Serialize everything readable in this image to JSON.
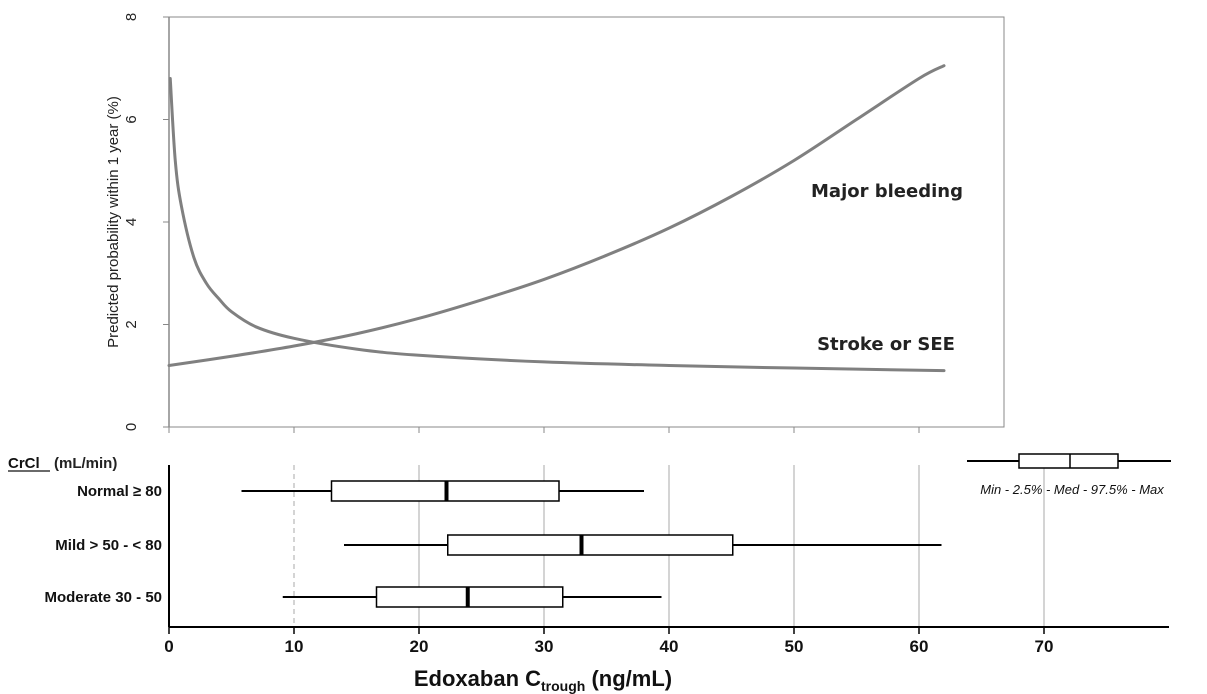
{
  "chart_data": [
    {
      "type": "line",
      "ylabel": "Predicted probability within 1 year (%)",
      "xlim": [
        0,
        62
      ],
      "ylim": [
        0,
        8
      ],
      "yticks": [
        "0",
        "2",
        "4",
        "6",
        "8"
      ],
      "grid": false,
      "series": [
        {
          "name": "Major bleeding",
          "color": "#808080",
          "x": [
            0,
            5,
            10,
            15,
            20,
            25,
            30,
            35,
            40,
            45,
            50,
            55,
            60,
            62
          ],
          "y": [
            1.2,
            1.38,
            1.58,
            1.82,
            2.12,
            2.48,
            2.88,
            3.35,
            3.88,
            4.5,
            5.2,
            6.0,
            6.8,
            7.05
          ]
        },
        {
          "name": "Stroke or SEE",
          "color": "#808080",
          "x": [
            0.1,
            0.5,
            1,
            2,
            3,
            4,
            5,
            7,
            10,
            15,
            20,
            30,
            40,
            50,
            62
          ],
          "y": [
            6.8,
            5.2,
            4.3,
            3.3,
            2.8,
            2.5,
            2.25,
            1.95,
            1.73,
            1.52,
            1.4,
            1.27,
            1.2,
            1.15,
            1.1
          ]
        }
      ]
    },
    {
      "type": "box",
      "title": "CrCl",
      "title_unit": "(mL/min)",
      "xlabel_main": "Edoxaban C",
      "xlabel_sub": "trough",
      "xlabel_unit": " (ng/mL)",
      "xlim": [
        0,
        80
      ],
      "xticks": [
        "0",
        "10",
        "20",
        "30",
        "40",
        "50",
        "60",
        "70"
      ],
      "grid": "vertical",
      "groups": [
        {
          "label": "Normal ≥ 80",
          "min": 5.8,
          "q1": 13.0,
          "median": 22.2,
          "q3": 31.2,
          "max": 38.0
        },
        {
          "label": "Mild > 50 - < 80",
          "min": 14.0,
          "q1": 22.3,
          "median": 33.0,
          "q3": 45.1,
          "max": 61.8
        },
        {
          "label": "Moderate 30 - 50",
          "min": 9.1,
          "q1": 16.6,
          "median": 23.9,
          "q3": 31.5,
          "max": 39.4
        }
      ],
      "legend": {
        "text": "Min - 2.5% - Med - 97.5% - Max",
        "placement": "top-right"
      }
    }
  ]
}
